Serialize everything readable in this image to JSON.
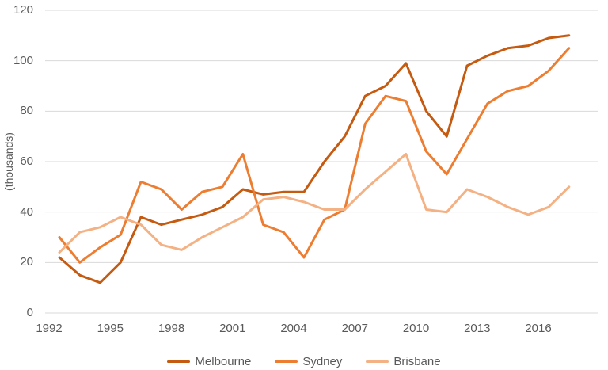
{
  "colors": {
    "text": "#595959",
    "gridline": "#D9D9D9",
    "background": "#FFFFFF"
  },
  "y_axis": {
    "title": "(thousands)",
    "tick_labels": [
      "0",
      "20",
      "40",
      "60",
      "80",
      "100",
      "120"
    ]
  },
  "x_axis": {
    "tick_labels": [
      "1992",
      "1995",
      "1998",
      "2001",
      "2004",
      "2007",
      "2010",
      "2013",
      "2016"
    ]
  },
  "legend": {
    "items": [
      "Melbourne",
      "Sydney",
      "Brisbane"
    ]
  },
  "chart_data": {
    "type": "line",
    "title": "",
    "xlabel": "",
    "ylabel": "(thousands)",
    "ylim": [
      0,
      120
    ],
    "y_tick_step": 20,
    "grid": "horizontal",
    "legend_position": "bottom",
    "x": [
      1992,
      1993,
      1994,
      1995,
      1996,
      1997,
      1998,
      1999,
      2000,
      2001,
      2002,
      2003,
      2004,
      2005,
      2006,
      2007,
      2008,
      2009,
      2010,
      2011,
      2012,
      2013,
      2014,
      2015,
      2016,
      2017
    ],
    "x_labeled_ticks": [
      1992,
      1995,
      1998,
      2001,
      2004,
      2007,
      2010,
      2013,
      2016
    ],
    "series": [
      {
        "name": "Melbourne",
        "color": "#C55A11",
        "values": [
          22,
          15,
          12,
          20,
          38,
          35,
          37,
          39,
          42,
          49,
          47,
          48,
          48,
          60,
          70,
          86,
          90,
          99,
          80,
          70,
          98,
          102,
          105,
          106,
          109,
          110
        ]
      },
      {
        "name": "Sydney",
        "color": "#ED7D31",
        "values": [
          30,
          20,
          26,
          31,
          52,
          49,
          41,
          48,
          50,
          63,
          35,
          32,
          22,
          37,
          41,
          75,
          86,
          84,
          64,
          55,
          69,
          83,
          88,
          90,
          96,
          105
        ]
      },
      {
        "name": "Brisbane",
        "color": "#F4B183",
        "values": [
          24,
          32,
          34,
          38,
          35,
          27,
          25,
          30,
          34,
          38,
          45,
          46,
          44,
          41,
          41,
          49,
          56,
          63,
          41,
          40,
          49,
          46,
          42,
          39,
          42,
          50
        ]
      }
    ]
  }
}
